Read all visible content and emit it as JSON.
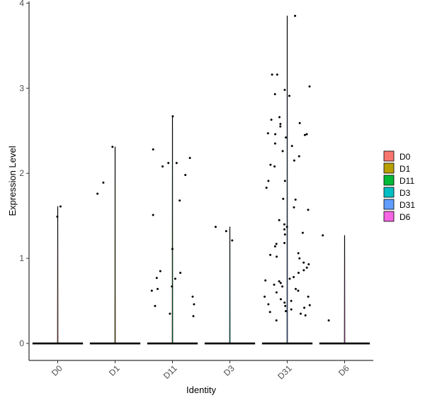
{
  "chart_data": {
    "type": "violin",
    "xlabel": "Identity",
    "ylabel": "Expression Level",
    "ylim": [
      -0.2,
      4.02
    ],
    "yticks": [
      0,
      1,
      2,
      3,
      4
    ],
    "categories": [
      "D0",
      "D1",
      "D11",
      "D3",
      "D31",
      "D6"
    ],
    "colors": [
      "#F8766D",
      "#B79F00",
      "#00BA38",
      "#00BFC4",
      "#619CFF",
      "#F564E3"
    ],
    "legend": {
      "position": "right",
      "entries": [
        "D0",
        "D1",
        "D11",
        "D3",
        "D31",
        "D6"
      ]
    },
    "grid": false,
    "violins": [
      {
        "category": "D0",
        "max": 1.61
      },
      {
        "category": "D1",
        "max": 2.31
      },
      {
        "category": "D11",
        "max": 2.67
      },
      {
        "category": "D3",
        "max": 1.37
      },
      {
        "category": "D31",
        "max": 3.85
      },
      {
        "category": "D6",
        "max": 1.27
      }
    ],
    "points": [
      {
        "category": "D0",
        "values": [
          1.49,
          1.61
        ]
      },
      {
        "category": "D1",
        "values": [
          1.76,
          1.89,
          2.31
        ]
      },
      {
        "category": "D11",
        "values": [
          2.67,
          2.28,
          2.18,
          2.12,
          2.12,
          2.08,
          1.98,
          1.68,
          1.51,
          1.11,
          0.85,
          0.83,
          0.77,
          0.76,
          0.67,
          0.64,
          0.62,
          0.55,
          0.46,
          0.44,
          0.35,
          0.32
        ]
      },
      {
        "category": "D3",
        "values": [
          1.37,
          1.32,
          1.21
        ]
      },
      {
        "category": "D31",
        "values": [
          3.85,
          3.16,
          3.16,
          3.02,
          2.98,
          2.93,
          2.91,
          2.66,
          2.63,
          2.59,
          2.58,
          2.55,
          2.47,
          2.46,
          2.46,
          2.45,
          2.42,
          2.35,
          2.32,
          2.26,
          2.2,
          2.15,
          2.1,
          2.08,
          1.91,
          1.91,
          1.83,
          1.7,
          1.69,
          1.6,
          1.57,
          1.45,
          1.4,
          1.37,
          1.34,
          1.3,
          1.28,
          1.18,
          1.17,
          1.14,
          1.06,
          1.04,
          1.02,
          1.0,
          0.95,
          0.93,
          0.89,
          0.86,
          0.83,
          0.78,
          0.76,
          0.74,
          0.73,
          0.71,
          0.69,
          0.67,
          0.64,
          0.62,
          0.6,
          0.55,
          0.55,
          0.52,
          0.5,
          0.48,
          0.46,
          0.45,
          0.44,
          0.42,
          0.4,
          0.38,
          0.37,
          0.35,
          0.33,
          0.27
        ]
      },
      {
        "category": "D6",
        "values": [
          1.27,
          0.27
        ]
      }
    ]
  }
}
